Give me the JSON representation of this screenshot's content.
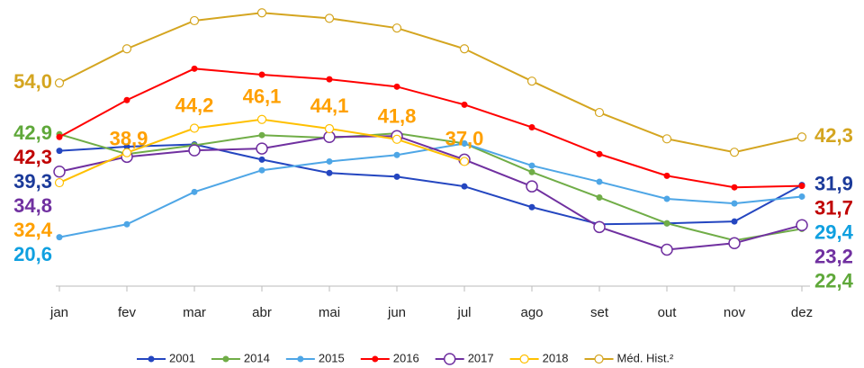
{
  "chart_data": {
    "type": "line",
    "categories": [
      "jan",
      "fev",
      "mar",
      "abr",
      "mai",
      "jun",
      "jul",
      "ago",
      "set",
      "out",
      "nov",
      "dez"
    ],
    "ylim": [
      10,
      71
    ],
    "series": [
      {
        "name": "2001",
        "color": "#2446c0",
        "label_color": "#1b3a9a",
        "marker": "dot",
        "values": [
          39.3,
          40.2,
          40.7,
          37.4,
          34.5,
          33.7,
          31.6,
          27.1,
          23.4,
          23.6,
          24.0,
          31.9
        ],
        "value_labels": [
          "39,3",
          null,
          null,
          null,
          null,
          null,
          null,
          null,
          null,
          null,
          null,
          "31,9"
        ]
      },
      {
        "name": "2014",
        "color": "#70ad47",
        "label_color": "#5fa83a",
        "marker": "dot",
        "values": [
          42.9,
          38.6,
          40.5,
          42.7,
          42.1,
          43.1,
          40.9,
          34.7,
          29.2,
          23.6,
          19.9,
          22.4
        ],
        "value_labels": [
          "42,9",
          null,
          null,
          null,
          null,
          null,
          null,
          null,
          null,
          null,
          null,
          "22,4"
        ]
      },
      {
        "name": "2015",
        "color": "#4ea6e6",
        "label_color": "#10a0e0",
        "marker": "dot",
        "values": [
          20.6,
          23.4,
          30.4,
          35.1,
          37.0,
          38.4,
          40.9,
          36.1,
          32.6,
          28.9,
          27.9,
          29.4
        ],
        "value_labels": [
          "20,6",
          null,
          null,
          null,
          null,
          null,
          null,
          null,
          null,
          null,
          null,
          "29,4"
        ]
      },
      {
        "name": "2016",
        "color": "#ff0000",
        "label_color": "#c00000",
        "marker": "dot",
        "values": [
          42.3,
          50.3,
          57.1,
          55.8,
          54.8,
          53.2,
          49.3,
          44.4,
          38.6,
          33.9,
          31.4,
          31.7
        ],
        "value_labels": [
          "42,3",
          null,
          null,
          null,
          null,
          null,
          null,
          null,
          null,
          null,
          null,
          "31,7"
        ]
      },
      {
        "name": "2017",
        "color": "#7030a0",
        "label_color": "#7030a0",
        "marker": "ring",
        "values": [
          34.8,
          38.0,
          39.4,
          39.8,
          42.3,
          42.5,
          37.4,
          31.6,
          22.8,
          17.9,
          19.3,
          23.2
        ],
        "value_labels": [
          "34,8",
          null,
          null,
          null,
          null,
          null,
          null,
          null,
          null,
          null,
          null,
          "23,2"
        ]
      },
      {
        "name": "2018",
        "color": "#ffc000",
        "label_color": "#ffa000",
        "marker": "open",
        "values": [
          32.4,
          38.9,
          44.2,
          46.1,
          44.1,
          41.8,
          37.0,
          null,
          null,
          null,
          null,
          null
        ],
        "value_labels": [
          "32,4",
          "38,9",
          "44,2",
          "46,1",
          "44,1",
          "41,8",
          "37,0",
          null,
          null,
          null,
          null,
          null
        ]
      },
      {
        "name": "Méd. Hist.²",
        "color": "#d4a520",
        "label_color": "#d4a520",
        "marker": "open",
        "values": [
          54.0,
          61.4,
          67.5,
          69.2,
          68.0,
          65.9,
          61.4,
          54.4,
          47.6,
          41.9,
          39.0,
          42.3
        ],
        "value_labels": [
          "54,0",
          null,
          null,
          null,
          null,
          null,
          null,
          null,
          null,
          null,
          null,
          "42,3"
        ]
      }
    ]
  }
}
